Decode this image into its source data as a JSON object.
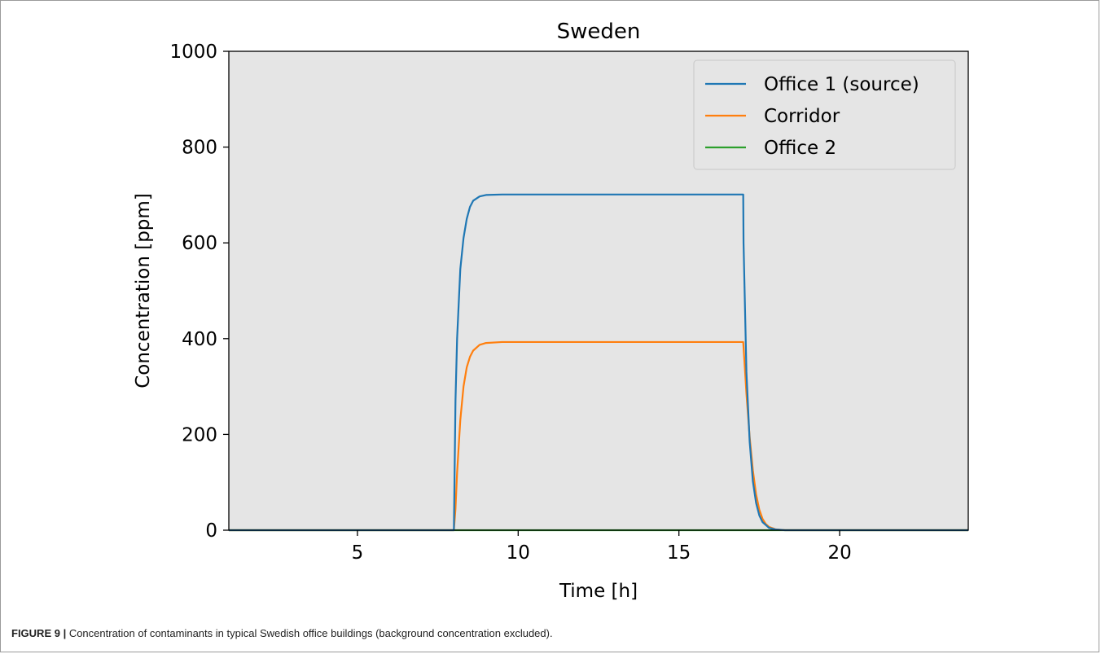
{
  "chart_data": {
    "type": "line",
    "title": "Sweden",
    "xlabel": "Time [h]",
    "ylabel": "Concentration [ppm]",
    "xlim": [
      1,
      24
    ],
    "ylim": [
      0,
      1000
    ],
    "xticks": [
      5,
      10,
      15,
      20
    ],
    "yticks": [
      0,
      200,
      400,
      600,
      800,
      1000
    ],
    "grid": false,
    "legend_position": "top-right",
    "background": "#e5e5e5",
    "series": [
      {
        "name": "Office 1 (source)",
        "color": "#1f77b4",
        "x": [
          1,
          7.99,
          8.0,
          8.05,
          8.1,
          8.2,
          8.3,
          8.4,
          8.5,
          8.6,
          8.8,
          9.0,
          9.5,
          12,
          17.0,
          17.01,
          17.1,
          17.2,
          17.3,
          17.4,
          17.5,
          17.6,
          17.8,
          18.0,
          18.3,
          24
        ],
        "y": [
          0,
          0,
          0,
          270,
          400,
          545,
          610,
          650,
          675,
          688,
          697,
          700,
          701,
          701,
          701,
          600,
          330,
          185,
          102,
          57,
          31,
          17,
          5,
          1.5,
          0,
          0
        ]
      },
      {
        "name": "Corridor",
        "color": "#ff7f0e",
        "x": [
          1,
          8.0,
          8.05,
          8.1,
          8.2,
          8.3,
          8.4,
          8.5,
          8.6,
          8.8,
          9.0,
          9.5,
          12,
          17.0,
          17.05,
          17.1,
          17.2,
          17.3,
          17.4,
          17.5,
          17.6,
          17.7,
          17.8,
          18.0,
          18.3,
          24
        ],
        "y": [
          0,
          0,
          45,
          120,
          230,
          300,
          340,
          362,
          375,
          387,
          391,
          393,
          393,
          393,
          340,
          285,
          195,
          125,
          75,
          43,
          24,
          13,
          7,
          2,
          0,
          0
        ]
      },
      {
        "name": "Office 2",
        "color": "#2ca02c",
        "x": [
          1,
          24
        ],
        "y": [
          0,
          0
        ]
      }
    ]
  },
  "caption": {
    "label": "FIGURE 9 |",
    "text": " Concentration of contaminants in typical Swedish office buildings (background concentration excluded)."
  }
}
